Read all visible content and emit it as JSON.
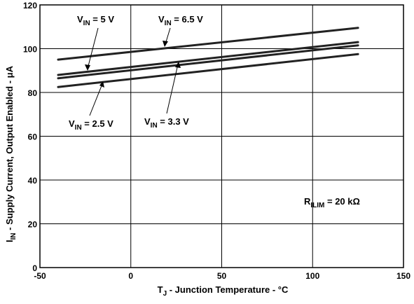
{
  "chart_data": {
    "type": "line",
    "xlabel": "T",
    "xlabel_sub": "J",
    "xlabel_rest": " - Junction Temperature - °C",
    "ylabel": "I",
    "ylabel_sub": "IN",
    "ylabel_rest": " - Supply Current, Output Enabled - μA",
    "xlim": [
      -50,
      150
    ],
    "ylim": [
      0,
      120
    ],
    "x_ticks": [
      "-50",
      "0",
      "50",
      "100",
      "150"
    ],
    "y_ticks": [
      "0",
      "20",
      "40",
      "60",
      "80",
      "100",
      "120"
    ],
    "grid": true,
    "x": [
      -40,
      125
    ],
    "series": [
      {
        "name": "V",
        "name_sub": "IN",
        "name_rest": " = 6.5 V",
        "values": [
          95,
          109.5
        ]
      },
      {
        "name": "V",
        "name_sub": "IN",
        "name_rest": " = 5 V",
        "values": [
          88,
          103
        ]
      },
      {
        "name": "V",
        "name_sub": "IN",
        "name_rest": " = 3.3 V",
        "values": [
          86.5,
          101.5
        ]
      },
      {
        "name": "V",
        "name_sub": "IN",
        "name_rest": " = 2.5 V",
        "values": [
          82.5,
          97.5
        ]
      }
    ],
    "annotation": {
      "main": "R",
      "sub": "ILIM",
      "rest": " = 20 kΩ"
    },
    "colors": {
      "line": "#222222",
      "grid": "#000000",
      "background": "#ffffff"
    }
  }
}
